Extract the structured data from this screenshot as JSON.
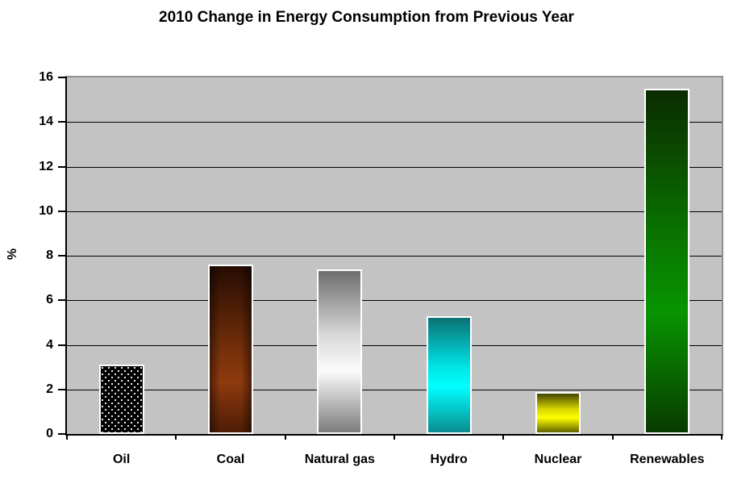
{
  "chart_data": {
    "type": "bar",
    "title": "2010 Change in Energy Consumption from Previous Year",
    "xlabel": "",
    "ylabel": "%",
    "categories": [
      "Oil",
      "Coal",
      "Natural gas",
      "Hydro",
      "Nuclear",
      "Renewables"
    ],
    "values": [
      3.1,
      7.6,
      7.4,
      5.3,
      1.9,
      15.5
    ],
    "ylim": [
      0,
      16
    ],
    "ytick_step": 2,
    "ytick_labels": [
      "0",
      "2",
      "4",
      "6",
      "8",
      "10",
      "12",
      "14",
      "16"
    ],
    "grid": true,
    "legend_position": "none",
    "plot_background": "#c3c3c3",
    "page_background": "#ffffff",
    "gridline_color": "#000000",
    "bar_border_color": "#ffffff",
    "bar_fills": [
      {
        "type": "dots",
        "background": "#000000",
        "dot_color": "#ffffff"
      },
      {
        "type": "gradient",
        "edge_shade": true,
        "stops": [
          {
            "color": "#260c02",
            "pos": "0%"
          },
          {
            "color": "#7c330c",
            "pos": "55%"
          },
          {
            "color": "#8d3a0e",
            "pos": "70%"
          },
          {
            "color": "#4f1c05",
            "pos": "100%"
          }
        ]
      },
      {
        "type": "gradient",
        "edge_shade": false,
        "stops": [
          {
            "color": "#6d6d6d",
            "pos": "0%"
          },
          {
            "color": "#d9d9d9",
            "pos": "40%"
          },
          {
            "color": "#fbfbfb",
            "pos": "62%"
          },
          {
            "color": "#7c7c7c",
            "pos": "100%"
          }
        ]
      },
      {
        "type": "gradient",
        "edge_shade": false,
        "stops": [
          {
            "color": "#0b7174",
            "pos": "0%"
          },
          {
            "color": "#00e2e4",
            "pos": "42%"
          },
          {
            "color": "#00ffff",
            "pos": "60%"
          },
          {
            "color": "#0a8c90",
            "pos": "100%"
          }
        ]
      },
      {
        "type": "gradient",
        "edge_shade": false,
        "stops": [
          {
            "color": "#464600",
            "pos": "0%"
          },
          {
            "color": "#d6d600",
            "pos": "40%"
          },
          {
            "color": "#ffff00",
            "pos": "62%"
          },
          {
            "color": "#626200",
            "pos": "100%"
          }
        ]
      },
      {
        "type": "gradient",
        "edge_shade": false,
        "stops": [
          {
            "color": "#0b2b00",
            "pos": "0%"
          },
          {
            "color": "#097800",
            "pos": "45%"
          },
          {
            "color": "#089400",
            "pos": "65%"
          },
          {
            "color": "#093c00",
            "pos": "100%"
          }
        ]
      }
    ]
  }
}
